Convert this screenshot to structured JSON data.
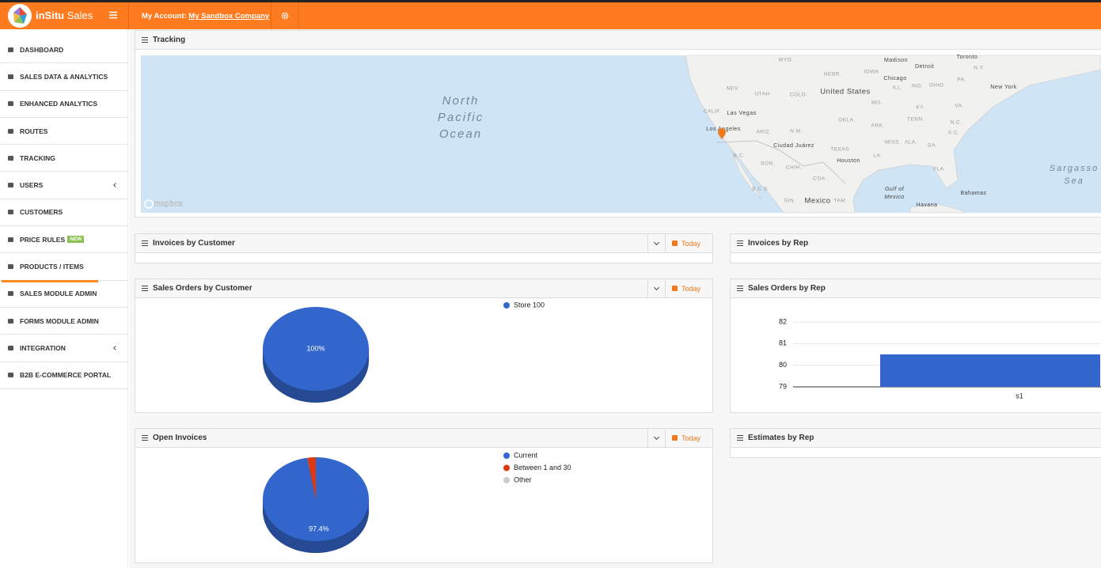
{
  "header": {
    "brand": "inSitu",
    "product": "Sales",
    "account_label": "My Account:",
    "account_name": "My Sandbox Company"
  },
  "sidebar": {
    "items": [
      "DASHBOARD",
      "SALES DATA & ANALYTICS",
      "ENHANCED ANALYTICS",
      "ROUTES",
      "TRACKING",
      "USERS",
      "CUSTOMERS",
      "PRICE RULES",
      "PRODUCTS / ITEMS",
      "SALES MODULE ADMIN",
      "FORMS MODULE ADMIN",
      "INTEGRATION",
      "B2B E-COMMERCE PORTAL"
    ],
    "badge": "NEW"
  },
  "tracking": {
    "title": "Tracking",
    "attribution": "mapbox",
    "map_labels": [
      "North",
      "Pacific",
      "Ocean",
      "United States",
      "Mexico",
      "Sargasso",
      "Sea",
      "Gulf of",
      "Mexico",
      "Chicago",
      "Detroit",
      "Toronto",
      "Madison",
      "New York",
      "Las Vegas",
      "Los Angeles",
      "Houston",
      "Ciudad Juárez",
      "Havana",
      "Bahamas",
      "WYO.",
      "NEBR.",
      "IOWA",
      "NEV.",
      "UTAH",
      "COLO.",
      "MO.",
      "ILL.",
      "IND.",
      "OHIO",
      "PA.",
      "N.Y.",
      "VA.",
      "KY.",
      "TENN.",
      "N.C.",
      "S.C.",
      "GA.",
      "ALA.",
      "MISS.",
      "ARK.",
      "OKLA.",
      "TEXAS",
      "N.M.",
      "ARIZ.",
      "CALIF.",
      "LA.",
      "FLA.",
      "SON.",
      "CHIH.",
      "COA.",
      "B.C.",
      "B.C.S.",
      "SIN.",
      "TAM."
    ]
  },
  "panels": [
    {
      "title": "Invoices by Customer",
      "filter": "Today"
    },
    {
      "title": "Invoices by Rep"
    },
    {
      "title": "Sales Orders by Customer",
      "filter": "Today"
    },
    {
      "title": "Sales Orders by Rep"
    },
    {
      "title": "Open Invoices",
      "filter": "Today"
    },
    {
      "title": "Estimates by Rep"
    }
  ],
  "chart_data": [
    {
      "type": "pie",
      "categories": [
        "Store 100"
      ],
      "values": [
        100
      ],
      "value_labels": [
        "100%"
      ],
      "colors": [
        "#3366cc"
      ]
    },
    {
      "type": "bar",
      "categories": [
        "s1"
      ],
      "values": [
        80.5
      ],
      "color": "#3366cc",
      "ylim": [
        79,
        82
      ],
      "yticks": [
        79,
        80,
        81,
        82
      ],
      "grid": true
    },
    {
      "type": "pie",
      "categories": [
        "Current",
        "Between 1 and 30",
        "Other"
      ],
      "values": [
        97.4,
        2.6,
        0
      ],
      "value_labels": [
        "97.4%",
        null,
        null
      ],
      "colors": [
        "#3366cc",
        "#dc3912",
        "#cccccc"
      ]
    }
  ]
}
